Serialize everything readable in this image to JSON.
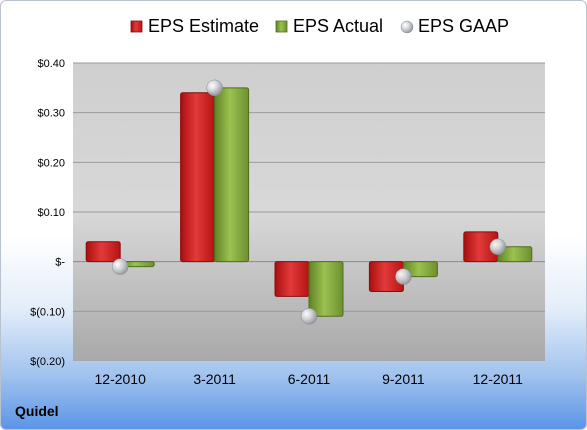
{
  "company": "Quidel",
  "chart_data": {
    "type": "bar",
    "categories": [
      "12-2010",
      "3-2011",
      "6-2011",
      "9-2011",
      "12-2011"
    ],
    "series": [
      {
        "name": "EPS Estimate",
        "values": [
          0.04,
          0.34,
          -0.07,
          -0.06,
          0.06
        ],
        "color": "#d21f1f"
      },
      {
        "name": "EPS Actual",
        "values": [
          -0.01,
          0.35,
          -0.11,
          -0.03,
          0.03
        ],
        "color": "#7ea33b"
      }
    ],
    "markers": {
      "name": "EPS GAAP",
      "values": [
        -0.01,
        0.35,
        -0.11,
        -0.03,
        0.03
      ],
      "color": "#b8bcc2"
    },
    "yticks": [
      0.4,
      0.3,
      0.2,
      0.1,
      0,
      -0.1,
      -0.2
    ],
    "ytick_labels": [
      "$0.40",
      "$0.30",
      "$0.20",
      "$0.10",
      "$-",
      "$(0.10)",
      "$(0.20)"
    ],
    "ylim": [
      -0.2,
      0.4
    ],
    "legend": "top",
    "grid": true
  }
}
